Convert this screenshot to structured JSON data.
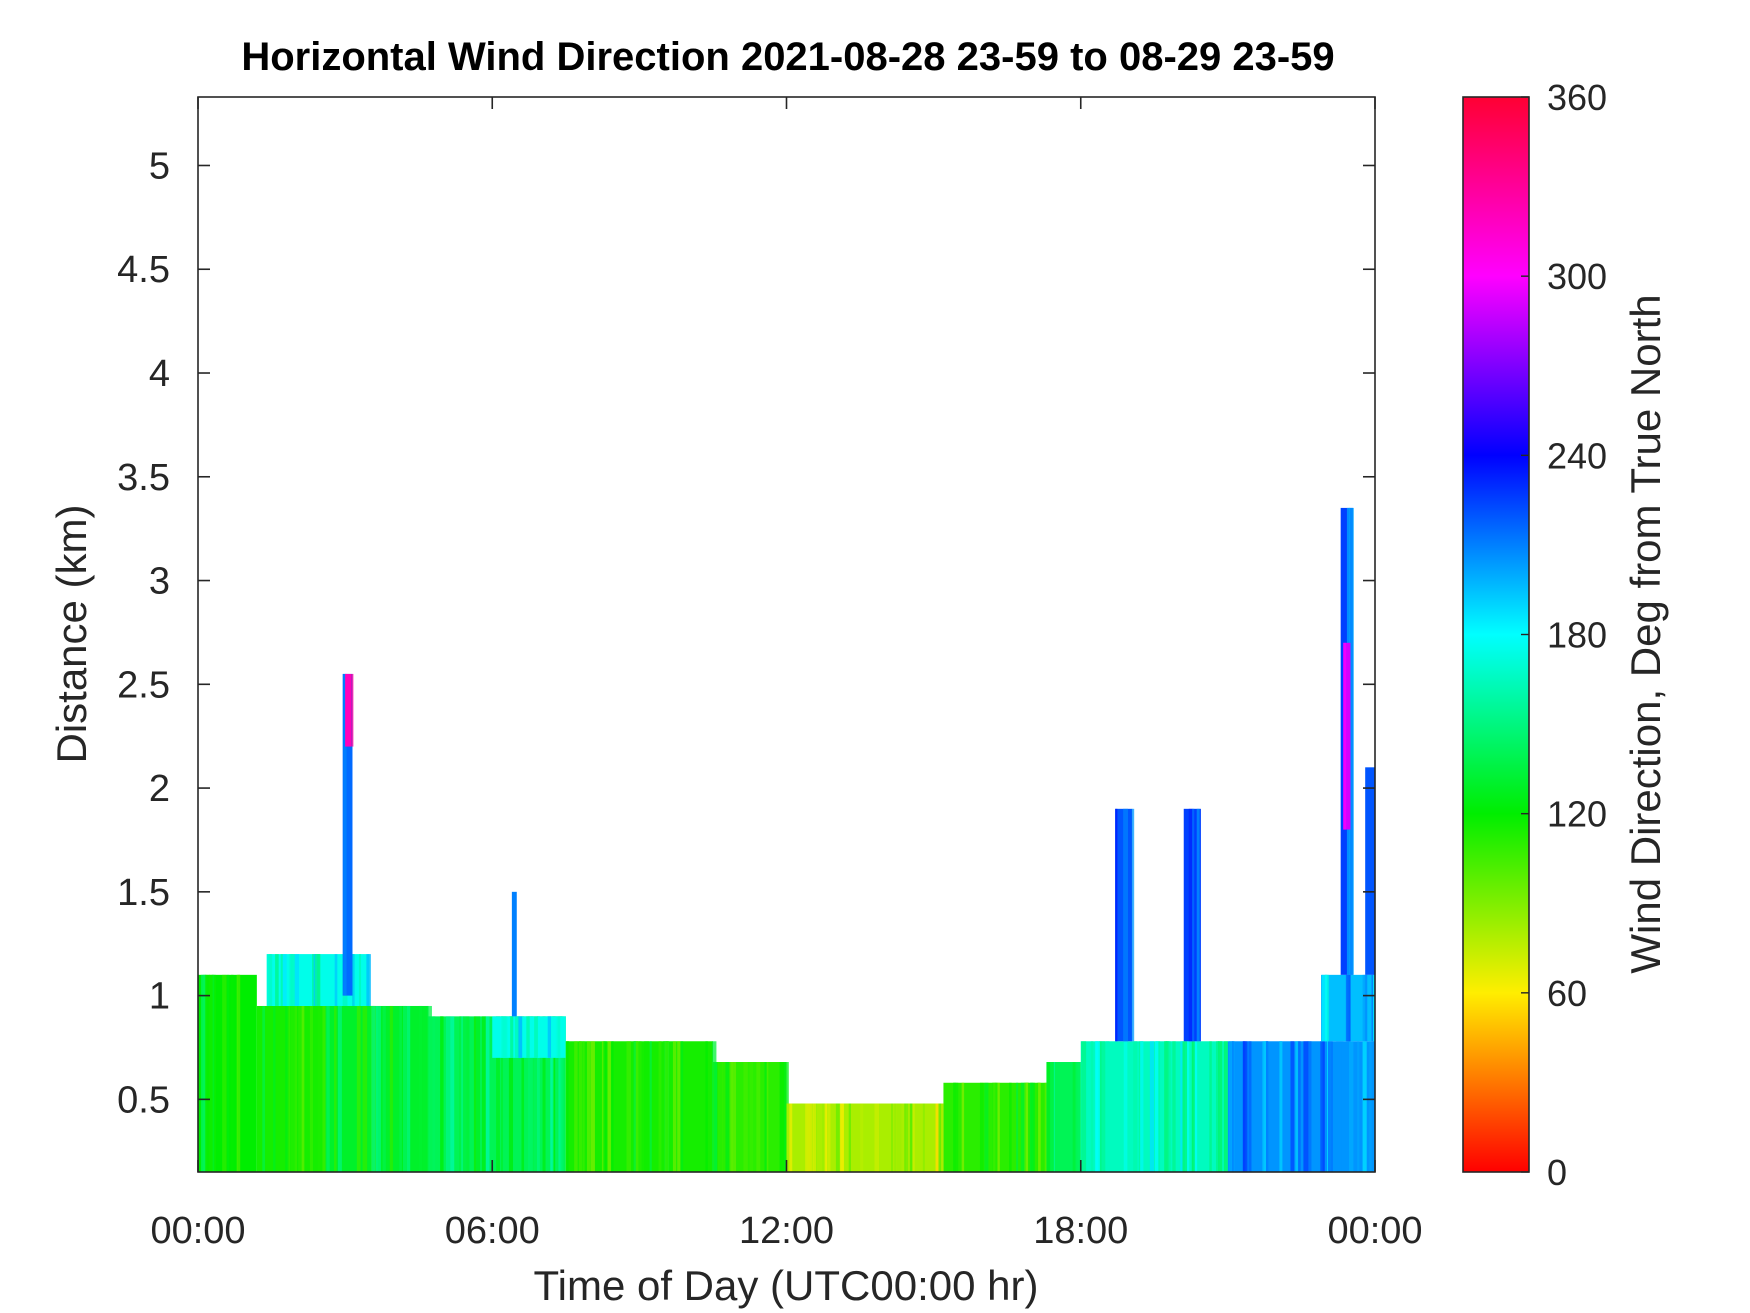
{
  "chart_data": {
    "type": "heatmap",
    "title": "Horizontal Wind Direction 2021-08-28 23-59 to 08-29 23-59",
    "xlabel": "Time of Day (UTC00:00 hr)",
    "ylabel": "Distance (km)",
    "colorbar_label": "Wind Direction, Deg from True North",
    "x_unit": "hours",
    "xlim": [
      0,
      24
    ],
    "ylim": [
      0.15,
      5.33
    ],
    "x_ticks": [
      {
        "value": 0,
        "label": "00:00"
      },
      {
        "value": 6,
        "label": "06:00"
      },
      {
        "value": 12,
        "label": "12:00"
      },
      {
        "value": 18,
        "label": "18:00"
      },
      {
        "value": 24,
        "label": "00:00"
      }
    ],
    "y_ticks": [
      {
        "value": 0.5,
        "label": "0.5"
      },
      {
        "value": 1,
        "label": "1"
      },
      {
        "value": 1.5,
        "label": "1.5"
      },
      {
        "value": 2,
        "label": "2"
      },
      {
        "value": 2.5,
        "label": "2.5"
      },
      {
        "value": 3,
        "label": "3"
      },
      {
        "value": 3.5,
        "label": "3.5"
      },
      {
        "value": 4,
        "label": "4"
      },
      {
        "value": 4.5,
        "label": "4.5"
      },
      {
        "value": 5,
        "label": "5"
      }
    ],
    "colorbar": {
      "min": 0,
      "max": 360,
      "ticks": [
        {
          "value": 0,
          "label": "0"
        },
        {
          "value": 60,
          "label": "60"
        },
        {
          "value": 120,
          "label": "120"
        },
        {
          "value": 180,
          "label": "180"
        },
        {
          "value": 240,
          "label": "240"
        },
        {
          "value": 300,
          "label": "300"
        },
        {
          "value": 360,
          "label": "360"
        }
      ],
      "colormap": [
        "#ff0000",
        "#ffee00",
        "#00ee00",
        "#00ffff",
        "#0000ff",
        "#ff00ff",
        "#ff0033"
      ]
    },
    "regions": [
      {
        "x": [
          0,
          1.2
        ],
        "y": [
          0.15,
          1.1
        ],
        "direction": 120
      },
      {
        "x": [
          1.2,
          2.6
        ],
        "y": [
          0.15,
          0.95
        ],
        "direction": 115
      },
      {
        "x": [
          1.4,
          3.5
        ],
        "y": [
          0.95,
          1.2
        ],
        "direction": 175
      },
      {
        "x": [
          2.6,
          4.7
        ],
        "y": [
          0.15,
          0.95
        ],
        "direction": 130
      },
      {
        "x": [
          2.95,
          3.15
        ],
        "y": [
          1.0,
          2.55
        ],
        "direction": 215
      },
      {
        "x": [
          3.0,
          3.12
        ],
        "y": [
          2.2,
          2.55
        ],
        "direction": 320
      },
      {
        "x": [
          4.7,
          7.5
        ],
        "y": [
          0.15,
          0.9
        ],
        "direction": 140
      },
      {
        "x": [
          6.0,
          7.5
        ],
        "y": [
          0.7,
          0.9
        ],
        "direction": 175
      },
      {
        "x": [
          6.4,
          6.5
        ],
        "y": [
          0.9,
          1.5
        ],
        "direction": 210
      },
      {
        "x": [
          7.5,
          10.5
        ],
        "y": [
          0.15,
          0.78
        ],
        "direction": 115
      },
      {
        "x": [
          10.5,
          12.0
        ],
        "y": [
          0.15,
          0.68
        ],
        "direction": 110
      },
      {
        "x": [
          12.0,
          15.2
        ],
        "y": [
          0.15,
          0.48
        ],
        "direction": 80
      },
      {
        "x": [
          15.2,
          17.3
        ],
        "y": [
          0.15,
          0.58
        ],
        "direction": 110
      },
      {
        "x": [
          17.3,
          18.0
        ],
        "y": [
          0.15,
          0.68
        ],
        "direction": 140
      },
      {
        "x": [
          18.0,
          21.0
        ],
        "y": [
          0.15,
          0.78
        ],
        "direction": 165
      },
      {
        "x": [
          18.7,
          19.05
        ],
        "y": [
          0.78,
          1.9
        ],
        "direction": 220
      },
      {
        "x": [
          20.1,
          20.45
        ],
        "y": [
          0.78,
          1.9
        ],
        "direction": 225
      },
      {
        "x": [
          21.0,
          24.0
        ],
        "y": [
          0.15,
          0.78
        ],
        "direction": 205
      },
      {
        "x": [
          22.9,
          24.0
        ],
        "y": [
          0.78,
          1.1
        ],
        "direction": 195
      },
      {
        "x": [
          23.3,
          23.55
        ],
        "y": [
          1.1,
          3.35
        ],
        "direction": 225
      },
      {
        "x": [
          23.35,
          23.5
        ],
        "y": [
          1.8,
          2.7
        ],
        "direction": 290
      },
      {
        "x": [
          23.8,
          24.0
        ],
        "y": [
          1.1,
          2.1
        ],
        "direction": 220
      }
    ]
  }
}
